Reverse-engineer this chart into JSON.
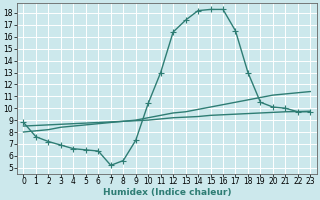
{
  "bg_color": "#cce8ec",
  "grid_color": "#ffffff",
  "line_color": "#2e7d74",
  "marker": "+",
  "markersize": 4,
  "linewidth": 1.0,
  "xlabel": "Humidex (Indice chaleur)",
  "xlim": [
    -0.5,
    23.5
  ],
  "ylim": [
    4.5,
    18.8
  ],
  "yticks": [
    5,
    6,
    7,
    8,
    9,
    10,
    11,
    12,
    13,
    14,
    15,
    16,
    17,
    18
  ],
  "xticks": [
    0,
    1,
    2,
    3,
    4,
    5,
    6,
    7,
    8,
    9,
    10,
    11,
    12,
    13,
    14,
    15,
    16,
    17,
    18,
    19,
    20,
    21,
    22,
    23
  ],
  "curve1_x": [
    0,
    1,
    2,
    3,
    4,
    5,
    6,
    7,
    8,
    9,
    10,
    11,
    12,
    13,
    14,
    15,
    16,
    17,
    18,
    19,
    20,
    21,
    22,
    23
  ],
  "curve1_y": [
    8.8,
    7.6,
    7.2,
    6.9,
    6.6,
    6.5,
    6.4,
    5.2,
    5.6,
    7.3,
    10.4,
    13.0,
    16.4,
    17.4,
    18.2,
    18.3,
    18.3,
    16.5,
    13.0,
    10.5,
    10.1,
    10.0,
    9.7,
    9.7
  ],
  "curve2_x": [
    0,
    1,
    2,
    3,
    4,
    5,
    6,
    7,
    8,
    9,
    10,
    11,
    12,
    13,
    14,
    15,
    16,
    17,
    18,
    19,
    20,
    21,
    22,
    23
  ],
  "curve2_y": [
    8.0,
    8.1,
    8.2,
    8.4,
    8.5,
    8.6,
    8.7,
    8.8,
    8.9,
    9.0,
    9.2,
    9.4,
    9.6,
    9.7,
    9.9,
    10.1,
    10.3,
    10.5,
    10.7,
    10.9,
    11.1,
    11.2,
    11.3,
    11.4
  ],
  "curve3_x": [
    0,
    1,
    2,
    3,
    4,
    5,
    6,
    7,
    8,
    9,
    10,
    11,
    12,
    13,
    14,
    15,
    16,
    17,
    18,
    19,
    20,
    21,
    22,
    23
  ],
  "curve3_y": [
    8.5,
    8.55,
    8.6,
    8.65,
    8.7,
    8.75,
    8.8,
    8.85,
    8.9,
    8.95,
    9.0,
    9.1,
    9.2,
    9.25,
    9.3,
    9.4,
    9.45,
    9.5,
    9.55,
    9.6,
    9.65,
    9.7,
    9.72,
    9.75
  ],
  "tick_fontsize": 5.5,
  "label_fontsize": 6.5
}
